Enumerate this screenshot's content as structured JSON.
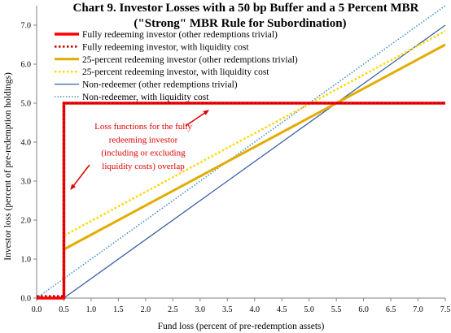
{
  "chart_data": {
    "type": "line",
    "title_lines": [
      "Chart 9. Investor Losses with a 50 bp Buffer and a 5 Percent MBR",
      "(\"Strong\" MBR Rule for Subordination)"
    ],
    "xlabel": "Fund loss (percent of pre-redemption assets)",
    "ylabel": "Investor loss (percent of pre-redemption holdings)",
    "xlim": [
      0,
      7.5
    ],
    "ylim": [
      0,
      7.5
    ],
    "xticks": [
      "0.0",
      "0.5",
      "1.0",
      "1.5",
      "2.0",
      "2.5",
      "3.0",
      "3.5",
      "4.0",
      "4.5",
      "5.0",
      "5.5",
      "6.0",
      "6.5",
      "7.0",
      "7.5"
    ],
    "yticks": [
      "0.0",
      "1.0",
      "2.0",
      "3.0",
      "4.0",
      "5.0",
      "6.0",
      "7.0"
    ],
    "grid": false,
    "legend_position": "top-left",
    "series": [
      {
        "name": "Fully redeeming investor (other redemptions trivial)",
        "color": "#ff0000",
        "style": "solid",
        "width": 3.5,
        "x": [
          0,
          0.5,
          0.5,
          7.5
        ],
        "y": [
          0,
          0,
          5,
          5
        ]
      },
      {
        "name": "Fully redeeming investor, with liquidity cost",
        "color": "#c00000",
        "style": "dotted",
        "width": 2.5,
        "x": [
          0,
          0.5,
          0.5,
          7.5
        ],
        "y": [
          0.05,
          0.05,
          5,
          5
        ]
      },
      {
        "name": "25-percent redeeming investor (other redemptions trivial)",
        "color": "#e2ac00",
        "style": "solid",
        "width": 3,
        "x": [
          0,
          0.5,
          0.5,
          7.5
        ],
        "y": [
          0,
          0,
          1.25,
          6.5
        ]
      },
      {
        "name": "25-percent redeeming investor, with liquidity cost",
        "color": "#ffd700",
        "style": "dotted",
        "width": 2.5,
        "x": [
          0,
          0.5,
          0.5,
          7.5
        ],
        "y": [
          0.02,
          0.02,
          1.6,
          6.85
        ]
      },
      {
        "name": "Non-redeemer (other redemptions trivial)",
        "color": "#3a5fa8",
        "style": "solid",
        "width": 1.3,
        "x": [
          0,
          0.5,
          7.5
        ],
        "y": [
          0,
          0,
          7
        ]
      },
      {
        "name": "Non-redeemer, with liquidity cost",
        "color": "#4a90c8",
        "style": "dotted",
        "width": 1.6,
        "x": [
          0,
          0.5,
          7.5
        ],
        "y": [
          0,
          0.5,
          7.5
        ]
      }
    ],
    "annotation": {
      "lines": [
        "Loss functions for the fully",
        "redeeming investor",
        "(including or excluding",
        "liquidity costs) overlap"
      ]
    }
  }
}
